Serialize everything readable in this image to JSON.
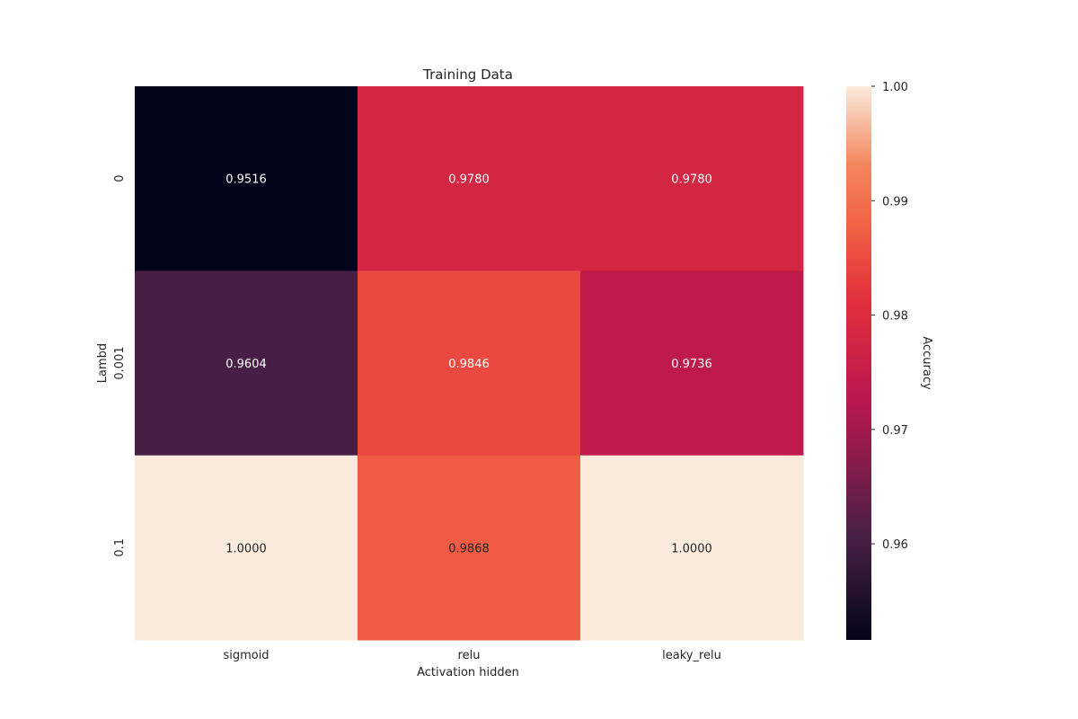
{
  "chart_data": {
    "type": "heatmap",
    "title": "Training Data",
    "xlabel": "Activation hidden",
    "ylabel": "Lambd",
    "x_categories": [
      "sigmoid",
      "relu",
      "leaky_relu"
    ],
    "y_categories": [
      "0",
      "0.001",
      "0.1"
    ],
    "values": [
      [
        0.9516,
        0.978,
        0.978
      ],
      [
        0.9604,
        0.9846,
        0.9736
      ],
      [
        1.0,
        0.9868,
        1.0
      ]
    ],
    "cell_labels": [
      [
        "0.9516",
        "0.9780",
        "0.9780"
      ],
      [
        "0.9604",
        "0.9846",
        "0.9736"
      ],
      [
        "1.0000",
        "0.9868",
        "1.0000"
      ]
    ],
    "colorbar": {
      "label": "Accuracy",
      "range": [
        0.9516,
        1.0
      ],
      "ticks": [
        0.96,
        0.97,
        0.98,
        0.99,
        1.0
      ],
      "tick_labels": [
        "0.96",
        "0.97",
        "0.98",
        "0.99",
        "1.00"
      ],
      "colormap": "rocket"
    }
  }
}
